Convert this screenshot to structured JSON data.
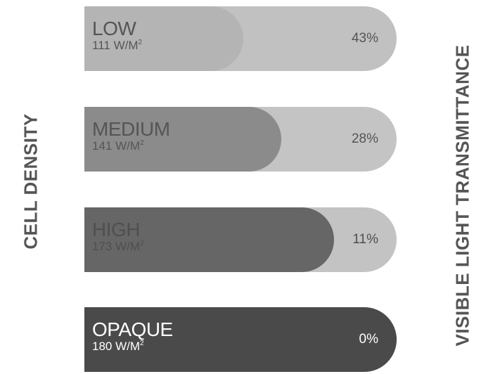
{
  "left_axis_label": "CELL DENSITY",
  "right_axis_label": "VISIBLE LIGHT TRANSMITTANCE",
  "density_unit": "W/M",
  "density_unit_exp": "2",
  "chart_data": {
    "type": "bar",
    "orientation": "horizontal",
    "categories": [
      "LOW",
      "MEDIUM",
      "HIGH",
      "OPAQUE"
    ],
    "cell_density_w_per_m2": [
      111,
      141,
      173,
      180
    ],
    "values": [
      43,
      28,
      11,
      0
    ],
    "value_labels": [
      "43%",
      "28%",
      "11%",
      "0%"
    ],
    "ylabel": "CELL DENSITY",
    "xlabel": "VISIBLE LIGHT TRANSMITTANCE",
    "colors": {
      "track": [
        "#c1c1c1",
        "#c4c4c4",
        "#c3c3c3",
        "#4a4a4a"
      ],
      "fill": [
        "#b4b4b4",
        "#8b8b8b",
        "#666666",
        "#4a4a4a"
      ],
      "text": [
        "#555555",
        "#555555",
        "#4f4f4f",
        "#ffffff"
      ]
    },
    "fill_fraction": [
      0.51,
      0.63,
      0.8,
      1.0
    ]
  }
}
